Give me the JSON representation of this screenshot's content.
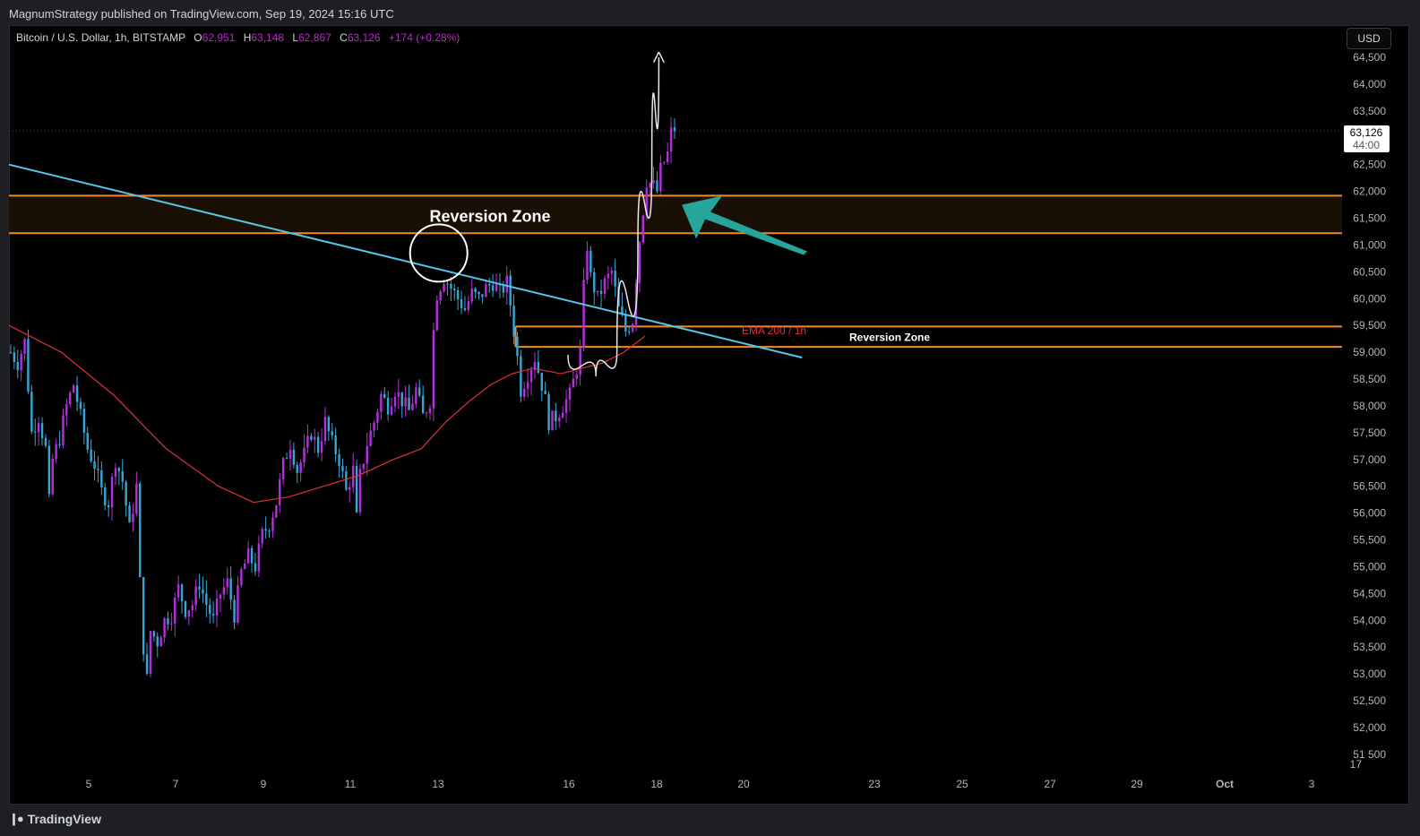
{
  "header": {
    "published": "MagnumStrategy published on TradingView.com, Sep 19, 2024 15:16 UTC"
  },
  "footer": {
    "brand": "TradingView",
    "brand_icon": "tradingview-logo-icon"
  },
  "legend": {
    "symbol": "Bitcoin / U.S. Dollar, 1h, BITSTAMP",
    "open_label": "O",
    "open": "62,951",
    "high_label": "H",
    "high": "63,148",
    "low_label": "L",
    "low": "62,867",
    "close_label": "C",
    "close": "63,126",
    "change": "+174 (+0.28%)"
  },
  "currency_button": "USD",
  "price_badge": {
    "price": "63,126",
    "countdown": "44:00"
  },
  "chart_data": {
    "type": "candlestick",
    "symbol": "Bitcoin / U.S. Dollar, 1h, BITSTAMP",
    "y_axis": {
      "range": [
        51500,
        64500
      ],
      "tick_labels": [
        "64,500",
        "64,000",
        "63,500",
        "63,000",
        "62,500",
        "62,000",
        "61,500",
        "61,000",
        "60,500",
        "60,000",
        "59,500",
        "59,000",
        "58,500",
        "58,000",
        "57,500",
        "57,000",
        "56,500",
        "56,000",
        "55,500",
        "55,000",
        "54,500",
        "54,000",
        "53,500",
        "53,000",
        "52,500",
        "52,000",
        "51 500"
      ],
      "bottom_label": "17"
    },
    "x_axis": {
      "tick_labels": [
        "5",
        "7",
        "9",
        "11",
        "13",
        "16",
        "18",
        "20",
        "23",
        "25",
        "27",
        "29",
        "Oct",
        "3"
      ],
      "bold_labels": [
        "Oct"
      ]
    },
    "grid": false,
    "colors": {
      "background": "#000000",
      "candle_up": "#b52fe0",
      "candle_down": "#35a7d6",
      "ema": "#e0303a",
      "trendline": "#55c6e8",
      "zone_border": "#f08a24",
      "zone_fill": "#1a0f05",
      "arrow": "#26a69a",
      "circle": "#ffffff",
      "curve": "#e8e8e8"
    },
    "price_path": [
      [
        0,
        59000
      ],
      [
        2,
        58800
      ],
      [
        4,
        59200
      ],
      [
        6,
        57500
      ],
      [
        8,
        57800
      ],
      [
        10,
        57200
      ],
      [
        11,
        56200
      ],
      [
        12,
        57000
      ],
      [
        14,
        57400
      ],
      [
        16,
        58000
      ],
      [
        18,
        58400
      ],
      [
        20,
        57800
      ],
      [
        22,
        57200
      ],
      [
        24,
        56900
      ],
      [
        26,
        56400
      ],
      [
        28,
        56200
      ],
      [
        30,
        57000
      ],
      [
        32,
        56600
      ],
      [
        34,
        55700
      ],
      [
        36,
        56500
      ],
      [
        37,
        54700
      ],
      [
        38,
        53500
      ],
      [
        39,
        52900
      ],
      [
        40,
        53800
      ],
      [
        42,
        53600
      ],
      [
        44,
        54000
      ],
      [
        46,
        54100
      ],
      [
        48,
        54600
      ],
      [
        50,
        54200
      ],
      [
        52,
        54300
      ],
      [
        54,
        54700
      ],
      [
        56,
        54300
      ],
      [
        58,
        54000
      ],
      [
        60,
        54500
      ],
      [
        62,
        54700
      ],
      [
        64,
        54100
      ],
      [
        66,
        54900
      ],
      [
        68,
        55200
      ],
      [
        70,
        55000
      ],
      [
        72,
        55600
      ],
      [
        74,
        55800
      ],
      [
        76,
        56200
      ],
      [
        78,
        56900
      ],
      [
        80,
        57300
      ],
      [
        82,
        56800
      ],
      [
        84,
        57100
      ],
      [
        86,
        57500
      ],
      [
        88,
        57200
      ],
      [
        90,
        57700
      ],
      [
        92,
        57300
      ],
      [
        94,
        57000
      ],
      [
        96,
        56400
      ],
      [
        98,
        56800
      ],
      [
        99,
        55900
      ],
      [
        100,
        56700
      ],
      [
        102,
        57300
      ],
      [
        104,
        57700
      ],
      [
        106,
        58200
      ],
      [
        108,
        58000
      ],
      [
        110,
        58300
      ],
      [
        112,
        58100
      ],
      [
        114,
        57900
      ],
      [
        116,
        58300
      ],
      [
        118,
        57800
      ],
      [
        120,
        58100
      ],
      [
        121,
        59400
      ],
      [
        122,
        60100
      ],
      [
        124,
        60400
      ],
      [
        126,
        60200
      ],
      [
        128,
        60000
      ],
      [
        130,
        59800
      ],
      [
        132,
        60100
      ],
      [
        134,
        60000
      ],
      [
        136,
        60200
      ],
      [
        138,
        60300
      ],
      [
        140,
        60100
      ],
      [
        142,
        60300
      ],
      [
        143,
        59900
      ],
      [
        144,
        59400
      ],
      [
        145,
        58900
      ],
      [
        146,
        58300
      ],
      [
        148,
        58600
      ],
      [
        150,
        58900
      ],
      [
        152,
        58400
      ],
      [
        153,
        58100
      ],
      [
        154,
        57700
      ],
      [
        156,
        57800
      ],
      [
        158,
        58000
      ],
      [
        160,
        58200
      ],
      [
        162,
        58700
      ],
      [
        163,
        59000
      ],
      [
        164,
        60200
      ],
      [
        165,
        61000
      ],
      [
        166,
        60400
      ],
      [
        168,
        60000
      ],
      [
        170,
        60300
      ],
      [
        172,
        60500
      ],
      [
        174,
        59800
      ],
      [
        176,
        59400
      ],
      [
        178,
        59600
      ],
      [
        179,
        60400
      ],
      [
        180,
        61100
      ],
      [
        182,
        62200
      ],
      [
        184,
        62100
      ],
      [
        185,
        62000
      ],
      [
        186,
        62400
      ],
      [
        188,
        62700
      ],
      [
        189,
        63100
      ],
      [
        190,
        63126
      ]
    ],
    "ema200": [
      [
        0,
        59500
      ],
      [
        15,
        59000
      ],
      [
        30,
        58200
      ],
      [
        45,
        57200
      ],
      [
        60,
        56500
      ],
      [
        70,
        56200
      ],
      [
        80,
        56300
      ],
      [
        90,
        56500
      ],
      [
        100,
        56700
      ],
      [
        110,
        57000
      ],
      [
        118,
        57200
      ],
      [
        125,
        57700
      ],
      [
        132,
        58100
      ],
      [
        138,
        58400
      ],
      [
        144,
        58600
      ],
      [
        150,
        58700
      ],
      [
        158,
        58600
      ],
      [
        164,
        58700
      ],
      [
        170,
        58800
      ],
      [
        176,
        59000
      ],
      [
        182,
        59300
      ]
    ],
    "trendline": {
      "start": [
        0,
        62500
      ],
      "end": [
        227,
        58900
      ]
    },
    "zones": [
      {
        "label": "Reversion Zone",
        "top": 61920,
        "bottom": 61220
      },
      {
        "label": "Reversion Zone",
        "top": 59480,
        "bottom": 59100,
        "start_bar": 145
      }
    ],
    "annotations": {
      "ema_label": "EMA 200 / 1h",
      "circle_around_high": [
        123,
        60850
      ],
      "arrow_tip": [
        189,
        61650
      ],
      "curve_path": [
        [
          160,
          58950
        ],
        [
          168,
          58550
        ],
        [
          174,
          59000
        ],
        [
          180,
          61000
        ],
        [
          184,
          62500
        ],
        [
          186,
          64500
        ]
      ]
    }
  }
}
